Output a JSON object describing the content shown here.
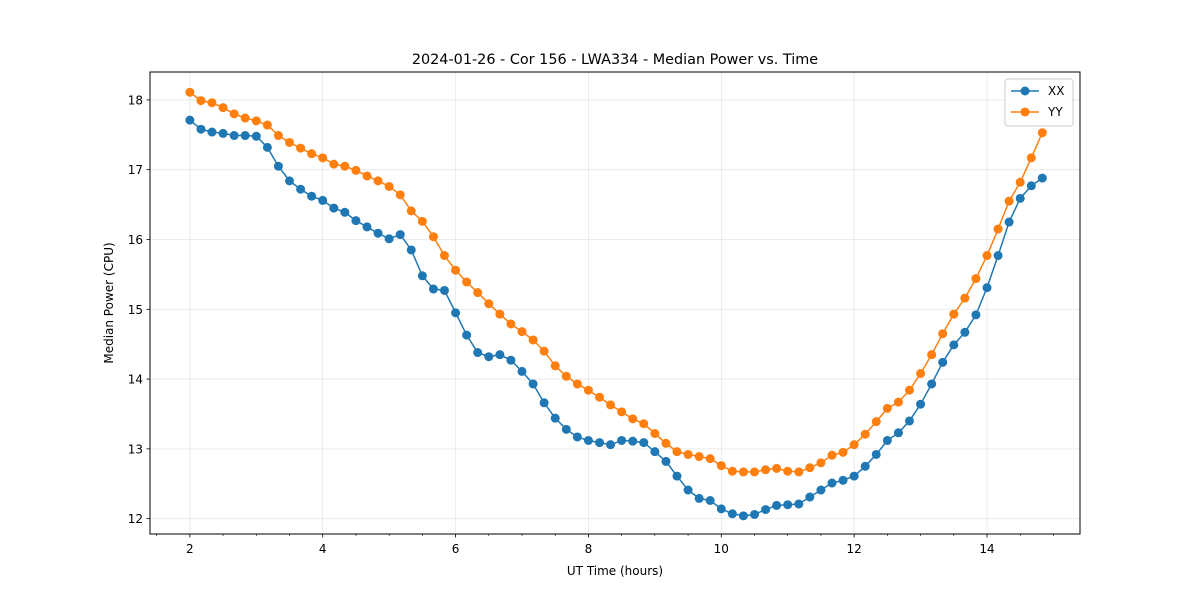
{
  "chart_data": {
    "type": "line",
    "title": "2024-01-26 - Cor 156 - LWA334 - Median Power vs. Time",
    "xlabel": "UT Time (hours)",
    "ylabel": "Median Power (CPU)",
    "xlim": [
      1.4,
      15.4
    ],
    "ylim": [
      11.78,
      18.4
    ],
    "xticks": [
      2,
      4,
      6,
      8,
      10,
      12,
      14
    ],
    "xtick_labels": [
      "2",
      "4",
      "6",
      "8",
      "10",
      "12",
      "14"
    ],
    "yticks": [
      12,
      13,
      14,
      15,
      16,
      17,
      18
    ],
    "ytick_labels": [
      "12",
      "13",
      "14",
      "15",
      "16",
      "17",
      "18"
    ],
    "grid": true,
    "legend_position": "upper right",
    "x": [
      2.0,
      2.167,
      2.333,
      2.5,
      2.667,
      2.833,
      3.0,
      3.167,
      3.333,
      3.5,
      3.667,
      3.833,
      4.0,
      4.167,
      4.333,
      4.5,
      4.667,
      4.833,
      5.0,
      5.167,
      5.333,
      5.5,
      5.667,
      5.833,
      6.0,
      6.167,
      6.333,
      6.5,
      6.667,
      6.833,
      7.0,
      7.167,
      7.333,
      7.5,
      7.667,
      7.833,
      8.0,
      8.167,
      8.333,
      8.5,
      8.667,
      8.833,
      9.0,
      9.167,
      9.333,
      9.5,
      9.667,
      9.833,
      10.0,
      10.167,
      10.333,
      10.5,
      10.667,
      10.833,
      11.0,
      11.167,
      11.333,
      11.5,
      11.667,
      11.833,
      12.0,
      12.167,
      12.333,
      12.5,
      12.667,
      12.833,
      13.0,
      13.167,
      13.333,
      13.5,
      13.667,
      13.833,
      14.0,
      14.167,
      14.333,
      14.5,
      14.667,
      14.833
    ],
    "series": [
      {
        "name": "XX",
        "color": "#1f77b4",
        "values": [
          17.71,
          17.58,
          17.54,
          17.52,
          17.49,
          17.49,
          17.48,
          17.32,
          17.05,
          16.84,
          16.72,
          16.62,
          16.56,
          16.45,
          16.39,
          16.27,
          16.18,
          16.09,
          16.01,
          16.07,
          15.85,
          15.48,
          15.29,
          15.27,
          14.95,
          14.63,
          14.38,
          14.32,
          14.35,
          14.27,
          14.11,
          13.93,
          13.66,
          13.44,
          13.28,
          13.17,
          13.12,
          13.09,
          13.06,
          13.12,
          13.11,
          13.09,
          12.96,
          12.82,
          12.61,
          12.41,
          12.29,
          12.26,
          12.14,
          12.07,
          12.04,
          12.06,
          12.13,
          12.19,
          12.2,
          12.21,
          12.31,
          12.41,
          12.51,
          12.55,
          12.61,
          12.75,
          12.92,
          13.12,
          13.23,
          13.4,
          13.64,
          13.93,
          14.24,
          14.49,
          14.67,
          14.92,
          15.31,
          15.77,
          16.25,
          16.59,
          16.77,
          16.88
        ]
      },
      {
        "name": "YY",
        "color": "#ff7f0e",
        "values": [
          18.11,
          17.99,
          17.96,
          17.89,
          17.8,
          17.74,
          17.7,
          17.64,
          17.49,
          17.39,
          17.31,
          17.23,
          17.17,
          17.08,
          17.05,
          16.99,
          16.91,
          16.84,
          16.76,
          16.64,
          16.41,
          16.26,
          16.04,
          15.77,
          15.56,
          15.39,
          15.24,
          15.08,
          14.93,
          14.79,
          14.68,
          14.56,
          14.4,
          14.19,
          14.04,
          13.93,
          13.84,
          13.74,
          13.63,
          13.53,
          13.43,
          13.36,
          13.22,
          13.08,
          12.96,
          12.92,
          12.89,
          12.86,
          12.76,
          12.68,
          12.67,
          12.67,
          12.7,
          12.72,
          12.68,
          12.67,
          12.73,
          12.8,
          12.91,
          12.95,
          13.06,
          13.21,
          13.39,
          13.58,
          13.67,
          13.84,
          14.08,
          14.35,
          14.65,
          14.93,
          15.16,
          15.44,
          15.77,
          16.15,
          16.55,
          16.82,
          17.17,
          17.53
        ]
      }
    ]
  }
}
